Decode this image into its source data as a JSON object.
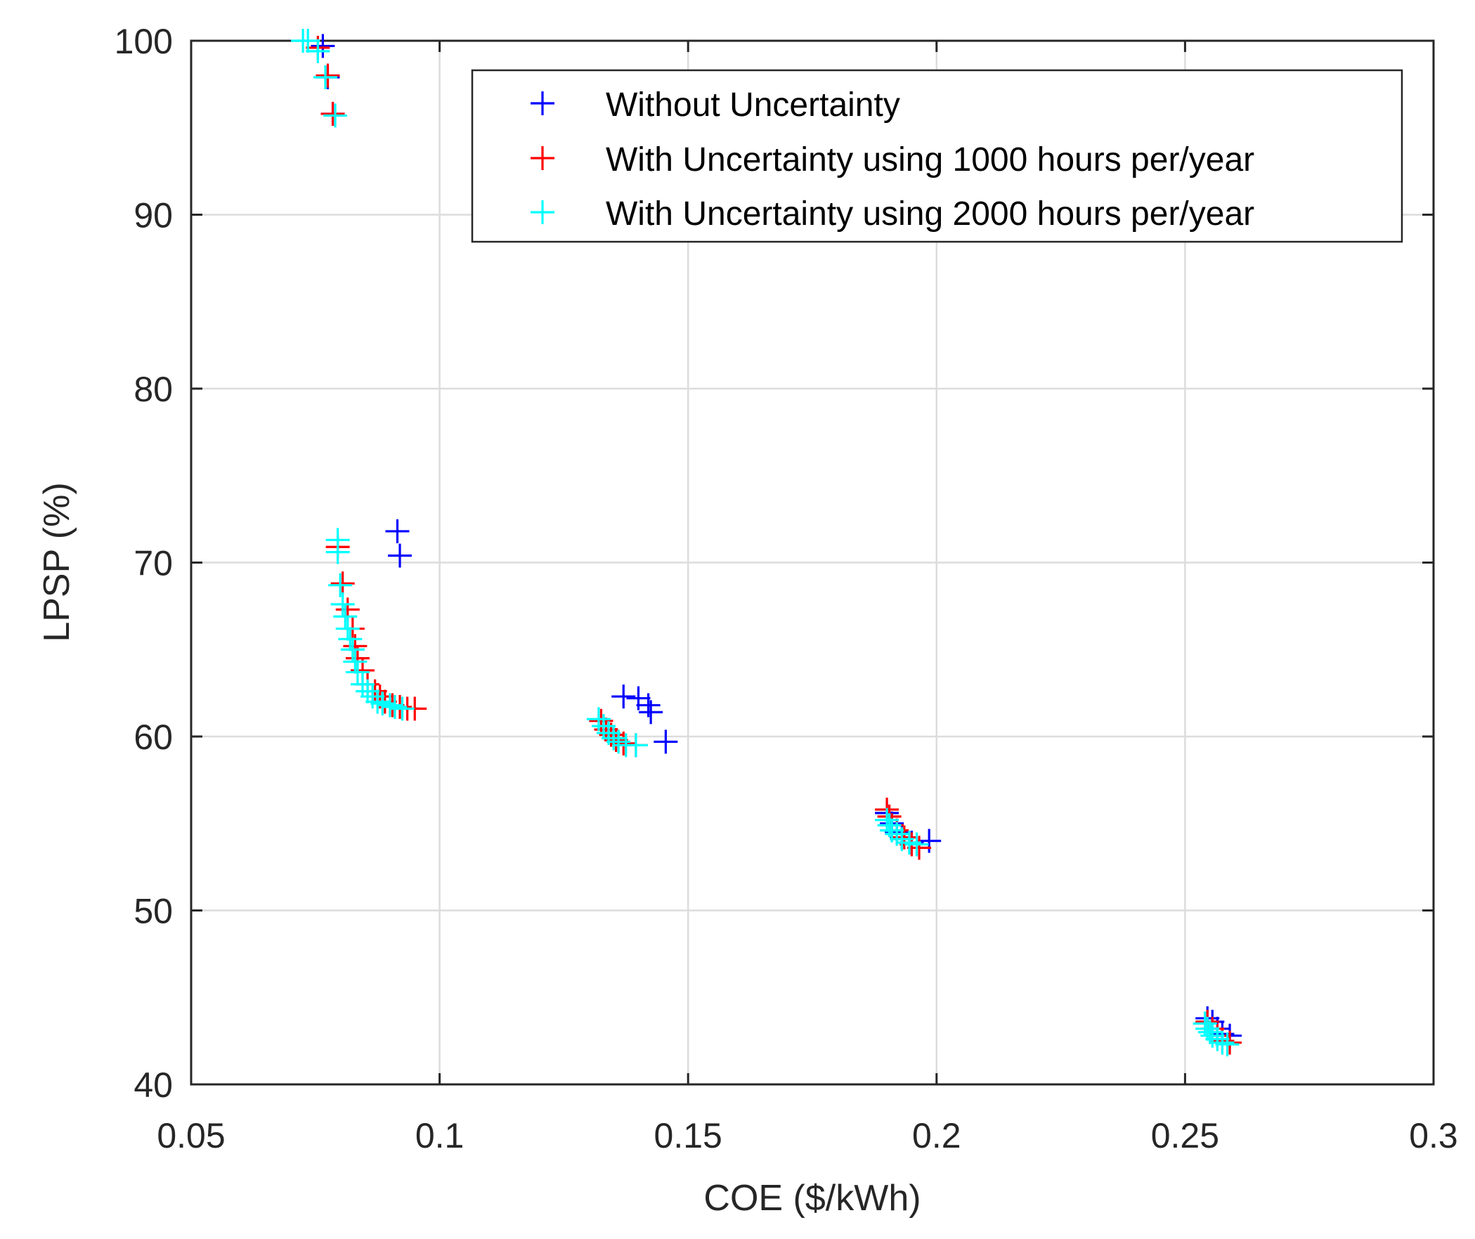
{
  "chart_data": {
    "type": "scatter",
    "xlabel": "COE ($/kWh)",
    "ylabel": "LPSP (%)",
    "xlim": [
      0.05,
      0.3
    ],
    "ylim": [
      40,
      100
    ],
    "xticks": [
      "0.05",
      "0.1",
      "0.15",
      "0.2",
      "0.25",
      "0.3"
    ],
    "yticks": [
      "40",
      "50",
      "60",
      "70",
      "80",
      "90",
      "100"
    ],
    "grid": true,
    "legend_position": "top-right",
    "marker": "+",
    "series": [
      {
        "name": "Without Uncertainty",
        "color": "#0000ff",
        "points": [
          [
            0.0765,
            99.7
          ],
          [
            0.0775,
            97.9
          ],
          [
            0.0785,
            95.8
          ],
          [
            0.0915,
            71.8
          ],
          [
            0.092,
            70.4
          ],
          [
            0.137,
            62.3
          ],
          [
            0.14,
            62.2
          ],
          [
            0.142,
            61.8
          ],
          [
            0.1425,
            61.4
          ],
          [
            0.1455,
            59.7
          ],
          [
            0.19,
            55.6
          ],
          [
            0.191,
            55.0
          ],
          [
            0.192,
            54.5
          ],
          [
            0.193,
            54.2
          ],
          [
            0.195,
            53.9
          ],
          [
            0.1985,
            54.0
          ],
          [
            0.2545,
            43.8
          ],
          [
            0.2555,
            43.6
          ],
          [
            0.2565,
            43.2
          ],
          [
            0.2575,
            42.9
          ],
          [
            0.259,
            42.8
          ]
        ]
      },
      {
        "name": "With Uncertainty using 1000 hours per/year",
        "color": "#ff0000",
        "points": [
          [
            0.0755,
            99.6
          ],
          [
            0.0775,
            98.0
          ],
          [
            0.0785,
            95.8
          ],
          [
            0.0795,
            70.9
          ],
          [
            0.0805,
            68.8
          ],
          [
            0.0815,
            67.3
          ],
          [
            0.0825,
            66.2
          ],
          [
            0.083,
            65.2
          ],
          [
            0.0835,
            64.5
          ],
          [
            0.0845,
            63.8
          ],
          [
            0.0855,
            63.0
          ],
          [
            0.087,
            62.6
          ],
          [
            0.088,
            62.3
          ],
          [
            0.089,
            62.0
          ],
          [
            0.0905,
            61.8
          ],
          [
            0.092,
            61.7
          ],
          [
            0.0935,
            61.6
          ],
          [
            0.095,
            61.6
          ],
          [
            0.1325,
            60.9
          ],
          [
            0.1335,
            60.4
          ],
          [
            0.1345,
            60.1
          ],
          [
            0.1355,
            59.8
          ],
          [
            0.137,
            59.6
          ],
          [
            0.1395,
            59.5
          ],
          [
            0.19,
            55.8
          ],
          [
            0.1905,
            55.4
          ],
          [
            0.191,
            54.9
          ],
          [
            0.192,
            54.6
          ],
          [
            0.1935,
            54.2
          ],
          [
            0.195,
            53.8
          ],
          [
            0.1965,
            53.6
          ],
          [
            0.2545,
            43.6
          ],
          [
            0.2555,
            43.2
          ],
          [
            0.2565,
            42.8
          ],
          [
            0.2575,
            42.5
          ],
          [
            0.259,
            42.4
          ]
        ]
      },
      {
        "name": "With Uncertainty using 2000 hours per/year",
        "color": "#00ffff",
        "points": [
          [
            0.0725,
            100.0
          ],
          [
            0.0735,
            100.0
          ],
          [
            0.0755,
            99.4
          ],
          [
            0.077,
            97.9
          ],
          [
            0.079,
            95.7
          ],
          [
            0.0795,
            71.3
          ],
          [
            0.0795,
            70.6
          ],
          [
            0.08,
            68.7
          ],
          [
            0.0805,
            67.6
          ],
          [
            0.081,
            66.9
          ],
          [
            0.0815,
            66.2
          ],
          [
            0.082,
            65.6
          ],
          [
            0.0825,
            65.0
          ],
          [
            0.083,
            64.3
          ],
          [
            0.0835,
            63.7
          ],
          [
            0.0845,
            63.0
          ],
          [
            0.0855,
            62.6
          ],
          [
            0.0865,
            62.3
          ],
          [
            0.0875,
            62.0
          ],
          [
            0.0885,
            61.9
          ],
          [
            0.09,
            61.8
          ],
          [
            0.091,
            61.7
          ],
          [
            0.0925,
            61.6
          ],
          [
            0.132,
            61.0
          ],
          [
            0.133,
            60.6
          ],
          [
            0.134,
            60.2
          ],
          [
            0.135,
            59.9
          ],
          [
            0.136,
            59.7
          ],
          [
            0.1375,
            59.5
          ],
          [
            0.1395,
            59.5
          ],
          [
            0.19,
            55.2
          ],
          [
            0.1905,
            54.9
          ],
          [
            0.191,
            54.6
          ],
          [
            0.192,
            54.4
          ],
          [
            0.193,
            54.1
          ],
          [
            0.1945,
            53.9
          ],
          [
            0.196,
            53.8
          ],
          [
            0.254,
            43.5
          ],
          [
            0.2545,
            43.2
          ],
          [
            0.255,
            43.0
          ],
          [
            0.2555,
            42.8
          ],
          [
            0.2565,
            42.6
          ],
          [
            0.2575,
            42.4
          ],
          [
            0.2585,
            42.3
          ]
        ]
      }
    ]
  }
}
